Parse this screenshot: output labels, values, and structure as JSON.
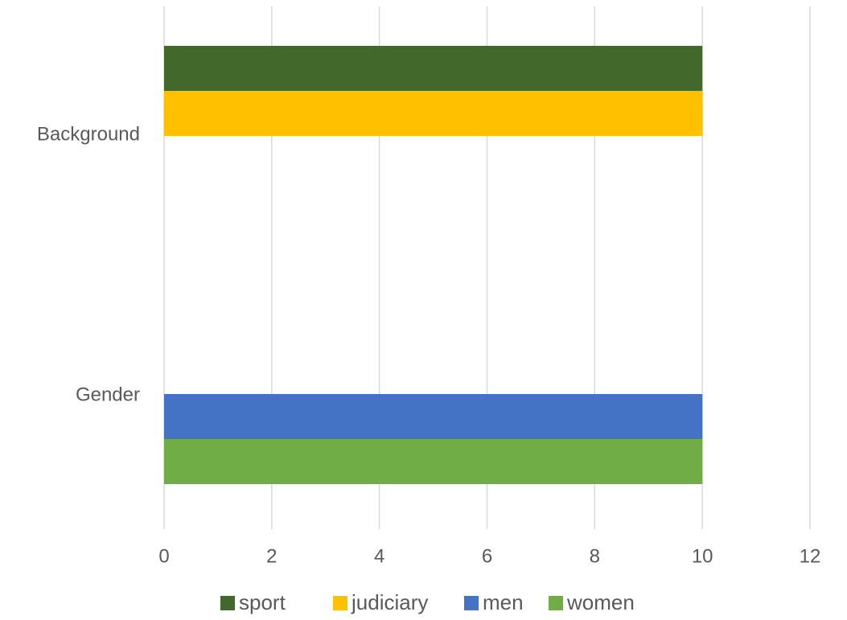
{
  "chart_data": {
    "type": "bar",
    "orientation": "horizontal",
    "categories": [
      "Gender",
      "Background"
    ],
    "groups": [
      {
        "category": "Background",
        "series": [
          {
            "name": "sport",
            "value": 10,
            "color": "#43682B"
          },
          {
            "name": "judiciary",
            "value": 10,
            "color": "#FFC000"
          }
        ]
      },
      {
        "category": "Gender",
        "series": [
          {
            "name": "men",
            "value": 10,
            "color": "#4472C4"
          },
          {
            "name": "women",
            "value": 10,
            "color": "#70AD47"
          }
        ]
      }
    ],
    "xlim": [
      0,
      12
    ],
    "xticks": [
      "0",
      "2",
      "4",
      "6",
      "8",
      "10",
      "12"
    ],
    "grid": true,
    "legend": {
      "position": "bottom",
      "entries": [
        {
          "name": "sport",
          "color": "#43682B"
        },
        {
          "name": "judiciary",
          "color": "#FFC000"
        },
        {
          "name": "men",
          "color": "#4472C4"
        },
        {
          "name": "women",
          "color": "#70AD47"
        }
      ]
    },
    "title": "",
    "xlabel": "",
    "ylabel": ""
  }
}
